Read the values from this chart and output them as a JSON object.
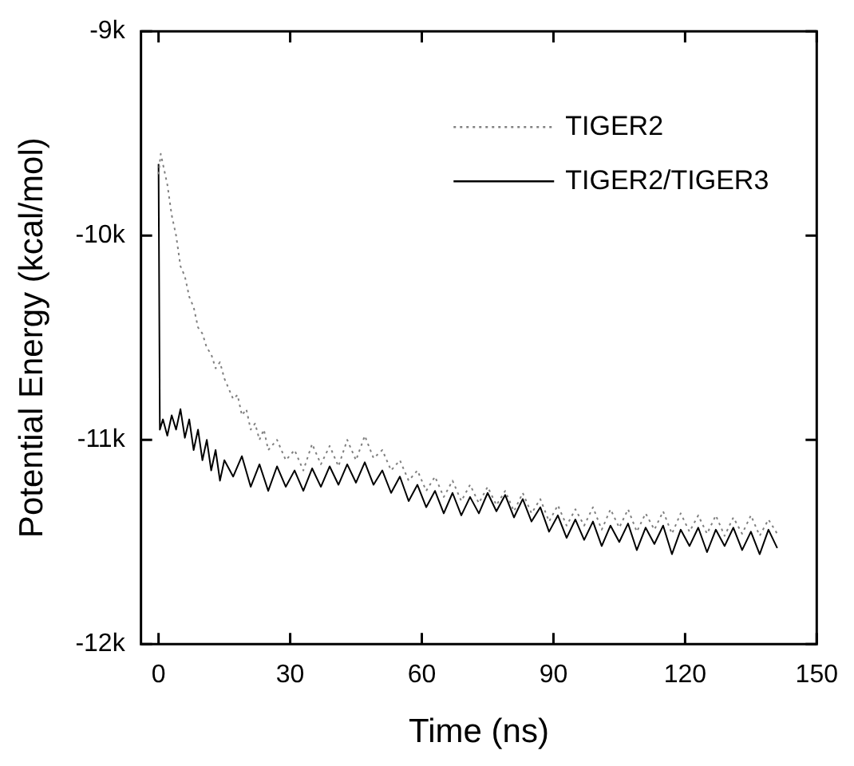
{
  "chart_data": {
    "type": "line",
    "xlabel": "Time (ns)",
    "ylabel": "Potential Energy (kcal/mol)",
    "xlim": [
      -4,
      150
    ],
    "xticks": [
      0,
      30,
      60,
      90,
      120,
      150
    ],
    "ylim": [
      -12000,
      -9000
    ],
    "yticks": [
      {
        "value": -12000,
        "label": "-12k"
      },
      {
        "value": -11000,
        "label": "-11k"
      },
      {
        "value": -10000,
        "label": "-10k"
      },
      {
        "value": -9000,
        "label": "-9k"
      }
    ],
    "grid": false,
    "legend": "top right",
    "marker": "none",
    "series": [
      {
        "name": "TIGER2",
        "color": "#808080",
        "line_style": "dotted",
        "x": [
          0,
          0.5,
          1,
          2,
          3,
          4,
          5,
          6,
          7,
          8,
          9,
          10,
          11,
          12,
          13,
          14,
          15,
          16,
          17,
          18,
          19,
          20,
          21,
          22,
          23,
          24,
          25,
          27,
          29,
          31,
          33,
          35,
          37,
          39,
          41,
          43,
          45,
          47,
          49,
          51,
          53,
          55,
          57,
          59,
          61,
          63,
          65,
          67,
          69,
          71,
          73,
          75,
          77,
          79,
          81,
          83,
          85,
          87,
          89,
          91,
          93,
          95,
          97,
          99,
          101,
          103,
          105,
          107,
          109,
          111,
          113,
          115,
          117,
          119,
          121,
          123,
          125,
          127,
          129,
          131,
          133,
          135,
          137,
          139,
          141
        ],
        "values": [
          -9700,
          -9600,
          -9650,
          -9750,
          -9900,
          -10000,
          -10150,
          -10200,
          -10300,
          -10350,
          -10450,
          -10480,
          -10550,
          -10580,
          -10650,
          -10620,
          -10700,
          -10750,
          -10800,
          -10780,
          -10880,
          -10850,
          -10950,
          -10920,
          -11000,
          -10950,
          -11050,
          -11000,
          -11100,
          -11050,
          -11150,
          -11020,
          -11120,
          -11030,
          -11130,
          -11000,
          -11100,
          -10980,
          -11090,
          -11050,
          -11150,
          -11100,
          -11200,
          -11150,
          -11250,
          -11180,
          -11280,
          -11200,
          -11300,
          -11220,
          -11310,
          -11230,
          -11320,
          -11250,
          -11350,
          -11260,
          -11360,
          -11290,
          -11400,
          -11320,
          -11420,
          -11340,
          -11420,
          -11330,
          -11440,
          -11340,
          -11430,
          -11340,
          -11450,
          -11360,
          -11440,
          -11350,
          -11460,
          -11360,
          -11450,
          -11370,
          -11460,
          -11370,
          -11470,
          -11380,
          -11460,
          -11370,
          -11470,
          -11390,
          -11460
        ]
      },
      {
        "name": "TIGER2/TIGER3",
        "color": "#000000",
        "line_style": "solid",
        "x": [
          0,
          0.3,
          1,
          2,
          3,
          4,
          5,
          6,
          7,
          8,
          9,
          10,
          11,
          12,
          13,
          14,
          15,
          17,
          19,
          21,
          23,
          25,
          27,
          29,
          31,
          33,
          35,
          37,
          39,
          41,
          43,
          45,
          47,
          49,
          51,
          53,
          55,
          57,
          59,
          61,
          63,
          65,
          67,
          69,
          71,
          73,
          75,
          77,
          79,
          81,
          83,
          85,
          87,
          89,
          91,
          93,
          95,
          97,
          99,
          101,
          103,
          105,
          107,
          109,
          111,
          113,
          115,
          117,
          119,
          121,
          123,
          125,
          127,
          129,
          131,
          133,
          135,
          137,
          139,
          141
        ],
        "values": [
          -9650,
          -10950,
          -10900,
          -10980,
          -10880,
          -10950,
          -10850,
          -10990,
          -10900,
          -11050,
          -10950,
          -11100,
          -11000,
          -11150,
          -11050,
          -11200,
          -11100,
          -11180,
          -11080,
          -11230,
          -11120,
          -11250,
          -11130,
          -11230,
          -11150,
          -11250,
          -11140,
          -11230,
          -11130,
          -11220,
          -11120,
          -11210,
          -11110,
          -11220,
          -11150,
          -11260,
          -11180,
          -11300,
          -11220,
          -11330,
          -11250,
          -11360,
          -11260,
          -11370,
          -11280,
          -11360,
          -11260,
          -11350,
          -11270,
          -11380,
          -11290,
          -11400,
          -11330,
          -11450,
          -11370,
          -11480,
          -11390,
          -11490,
          -11400,
          -11520,
          -11420,
          -11500,
          -11410,
          -11540,
          -11430,
          -11510,
          -11420,
          -11560,
          -11440,
          -11520,
          -11430,
          -11550,
          -11440,
          -11520,
          -11430,
          -11540,
          -11450,
          -11560,
          -11440,
          -11530
        ]
      }
    ]
  }
}
